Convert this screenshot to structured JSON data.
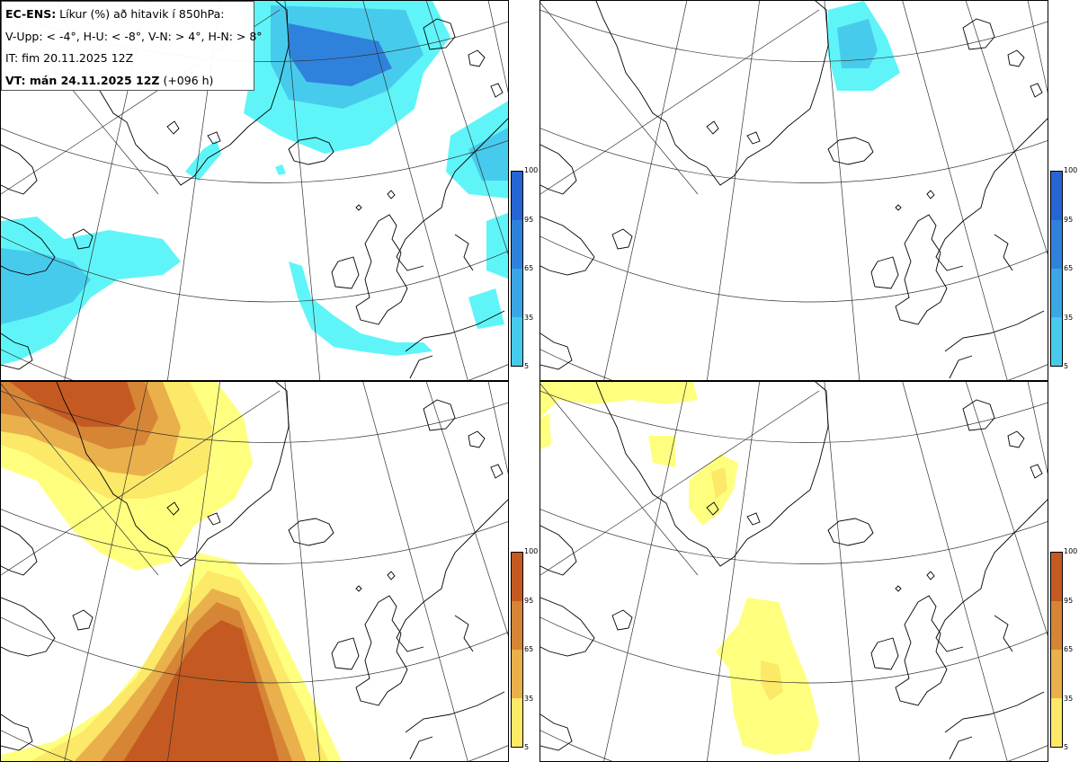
{
  "info": {
    "title_bold": "EC-ENS:",
    "title_rest": " Líkur (%) að hitavik í 850hPa:",
    "categories": "V-Upp: < -4°, H-U: < -8°, V-N: > 4°, H-N: > 8°",
    "initial_time": "IT: fim 20.11.2025 12Z",
    "valid_bold": "VT: mán 24.11.2025 12Z",
    "valid_rest": " (+096 h)"
  },
  "colorbars": {
    "ticks": [
      "100",
      "95",
      "65",
      "35",
      "5"
    ],
    "cold_colors": [
      "#5ff5f8",
      "#47cbed",
      "#3aa6e6",
      "#2f82dc",
      "#2566d4"
    ],
    "warm_colors": [
      "#ffff7f",
      "#fbe967",
      "#e9b04c",
      "#d58535",
      "#c45a21"
    ]
  },
  "panels": [
    {
      "id": "cold-4",
      "field": "< -4°"
    },
    {
      "id": "cold-8",
      "field": "< -8°"
    },
    {
      "id": "warm4",
      "field": "> 4°"
    },
    {
      "id": "warm8",
      "field": "> 8°"
    }
  ]
}
